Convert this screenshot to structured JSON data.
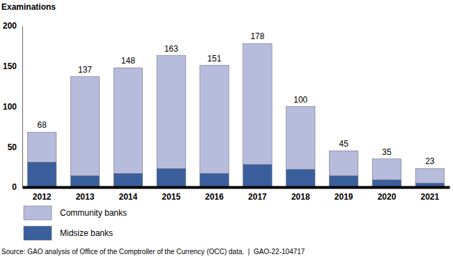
{
  "chart_data": {
    "type": "bar",
    "stacked": true,
    "y_label": "Examinations",
    "source": "Source: GAO analysis of Office of the Comptroller of the Currency (OCC) data.  |  GAO-22-104717",
    "categories": [
      "2012",
      "2013",
      "2014",
      "2015",
      "2016",
      "2017",
      "2018",
      "2019",
      "2020",
      "2021"
    ],
    "series": [
      {
        "name": "Midsize banks",
        "color": "#3a5f9c",
        "values": [
          31,
          14,
          17,
          23,
          17,
          28,
          22,
          14,
          9,
          5
        ]
      },
      {
        "name": "Community banks",
        "color": "#b7bbdc",
        "values": [
          37,
          123,
          131,
          140,
          134,
          150,
          78,
          31,
          26,
          18
        ]
      }
    ],
    "totals": [
      68,
      137,
      148,
      163,
      151,
      178,
      100,
      45,
      35,
      23
    ],
    "ylim": [
      0,
      200
    ],
    "yticks": [
      0,
      50,
      100,
      150,
      200
    ],
    "grid": false
  }
}
